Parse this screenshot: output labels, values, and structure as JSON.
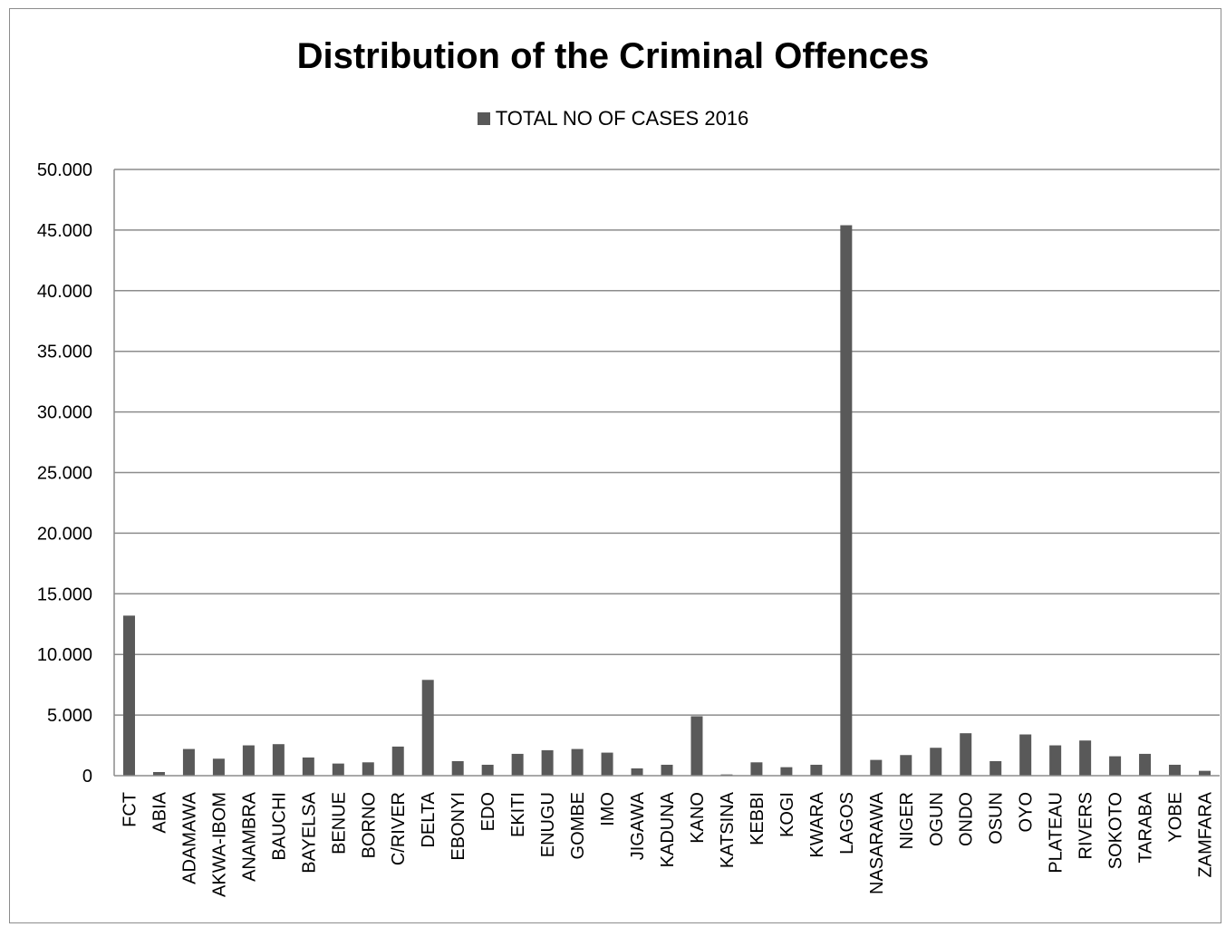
{
  "chart_data": {
    "type": "bar",
    "title": "Distribution of the Criminal Offences",
    "xlabel": "",
    "ylabel": "",
    "ylim": [
      0,
      50000
    ],
    "yticks": [
      {
        "value": 0,
        "label": "0"
      },
      {
        "value": 5000,
        "label": "5.000"
      },
      {
        "value": 10000,
        "label": "10.000"
      },
      {
        "value": 15000,
        "label": "15.000"
      },
      {
        "value": 20000,
        "label": "20.000"
      },
      {
        "value": 25000,
        "label": "25.000"
      },
      {
        "value": 30000,
        "label": "30.000"
      },
      {
        "value": 35000,
        "label": "35.000"
      },
      {
        "value": 40000,
        "label": "40.000"
      },
      {
        "value": 45000,
        "label": "45.000"
      },
      {
        "value": 50000,
        "label": "50.000"
      }
    ],
    "grid": true,
    "legend_position": "top",
    "categories": [
      "FCT",
      "ABIA",
      "ADAMAWA",
      "AKWA-IBOM",
      "ANAMBRA",
      "BAUCHI",
      "BAYELSA",
      "BENUE",
      "BORNO",
      "C/RIVER",
      "DELTA",
      "EBONYI",
      "EDO",
      "EKITI",
      "ENUGU",
      "GOMBE",
      "IMO",
      "JIGAWA",
      "KADUNA",
      "KANO",
      "KATSINA",
      "KEBBI",
      "KOGI",
      "KWARA",
      "LAGOS",
      "NASARAWA",
      "NIGER",
      "OGUN",
      "ONDO",
      "OSUN",
      "OYO",
      "PLATEAU",
      "RIVERS",
      "SOKOTO",
      "TARABA",
      "YOBE",
      "ZAMFARA"
    ],
    "series": [
      {
        "name": "TOTAL NO OF CASES 2016",
        "color": "#595959",
        "values": [
          13200,
          300,
          2200,
          1400,
          2500,
          2600,
          1500,
          1000,
          1100,
          2400,
          7900,
          1200,
          900,
          1800,
          2100,
          2200,
          1900,
          600,
          900,
          4900,
          100,
          1100,
          700,
          900,
          45400,
          1300,
          1700,
          2300,
          3500,
          1200,
          3400,
          2500,
          2900,
          1600,
          1800,
          900,
          400
        ]
      }
    ]
  }
}
